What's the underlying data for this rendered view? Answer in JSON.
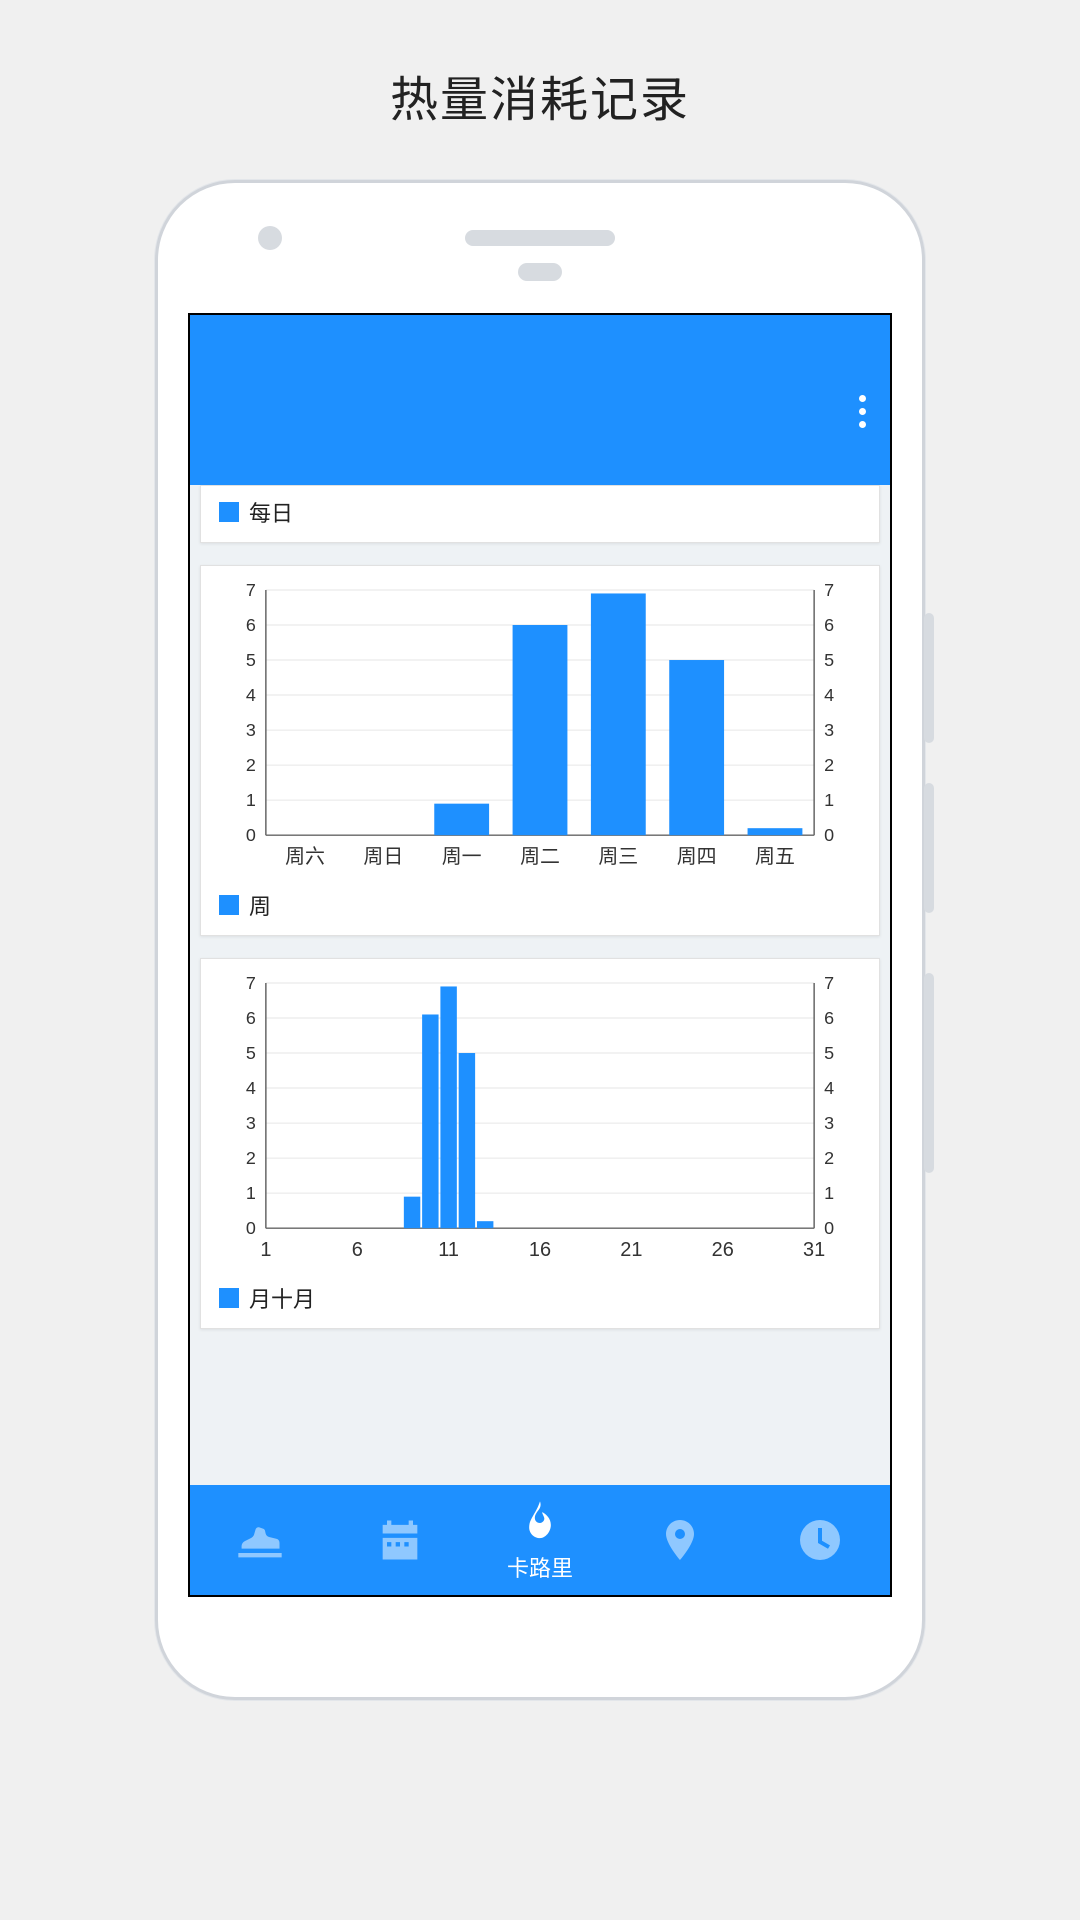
{
  "page_title": "热量消耗记录",
  "colors": {
    "page_bg": "#f0f0f0",
    "phone_border": "#d0d4da",
    "screen_bg": "#eef2f5",
    "primary": "#1e90ff",
    "nav_inactive": "#8fc8ff",
    "text": "#222222",
    "axis": "#666666",
    "grid": "#e6e6e6",
    "card_bg": "#ffffff"
  },
  "card_daily": {
    "legend_label": "每日",
    "legend_color": "#1e90ff"
  },
  "chart_week": {
    "type": "bar",
    "legend_label": "周",
    "legend_color": "#1e90ff",
    "bar_color": "#1e90ff",
    "background_color": "#ffffff",
    "grid_color": "#e6e6e6",
    "axis_color": "#666666",
    "ylim": [
      0,
      7
    ],
    "ytick_step": 1,
    "yticks": [
      0,
      1,
      2,
      3,
      4,
      5,
      6,
      7
    ],
    "categories": [
      "周六",
      "周日",
      "周一",
      "周二",
      "周三",
      "周四",
      "周五"
    ],
    "values": [
      0,
      0,
      0.9,
      6.0,
      6.9,
      5.0,
      0.2
    ],
    "bar_width_ratio": 0.7,
    "label_fontsize": 18,
    "xlabel_fontsize": 20,
    "dual_y_axis": true
  },
  "chart_month": {
    "type": "bar",
    "legend_label": "月十月",
    "legend_color": "#1e90ff",
    "bar_color": "#1e90ff",
    "background_color": "#ffffff",
    "grid_color": "#e6e6e6",
    "axis_color": "#666666",
    "ylim": [
      0,
      7
    ],
    "ytick_step": 1,
    "yticks": [
      0,
      1,
      2,
      3,
      4,
      5,
      6,
      7
    ],
    "xlim": [
      1,
      31
    ],
    "xticks": [
      1,
      6,
      11,
      16,
      21,
      26,
      31
    ],
    "days": [
      9,
      10,
      11,
      12,
      13
    ],
    "values": [
      0.9,
      6.1,
      6.9,
      5.0,
      0.2
    ],
    "bar_width_ratio": 0.9,
    "label_fontsize": 18,
    "xlabel_fontsize": 20,
    "dual_y_axis": true
  },
  "bottom_nav": {
    "items": [
      {
        "name": "shoe",
        "label": "",
        "active": false
      },
      {
        "name": "calendar",
        "label": "",
        "active": false
      },
      {
        "name": "calorie",
        "label": "卡路里",
        "active": true
      },
      {
        "name": "location",
        "label": "",
        "active": false
      },
      {
        "name": "clock",
        "label": "",
        "active": false
      }
    ]
  }
}
